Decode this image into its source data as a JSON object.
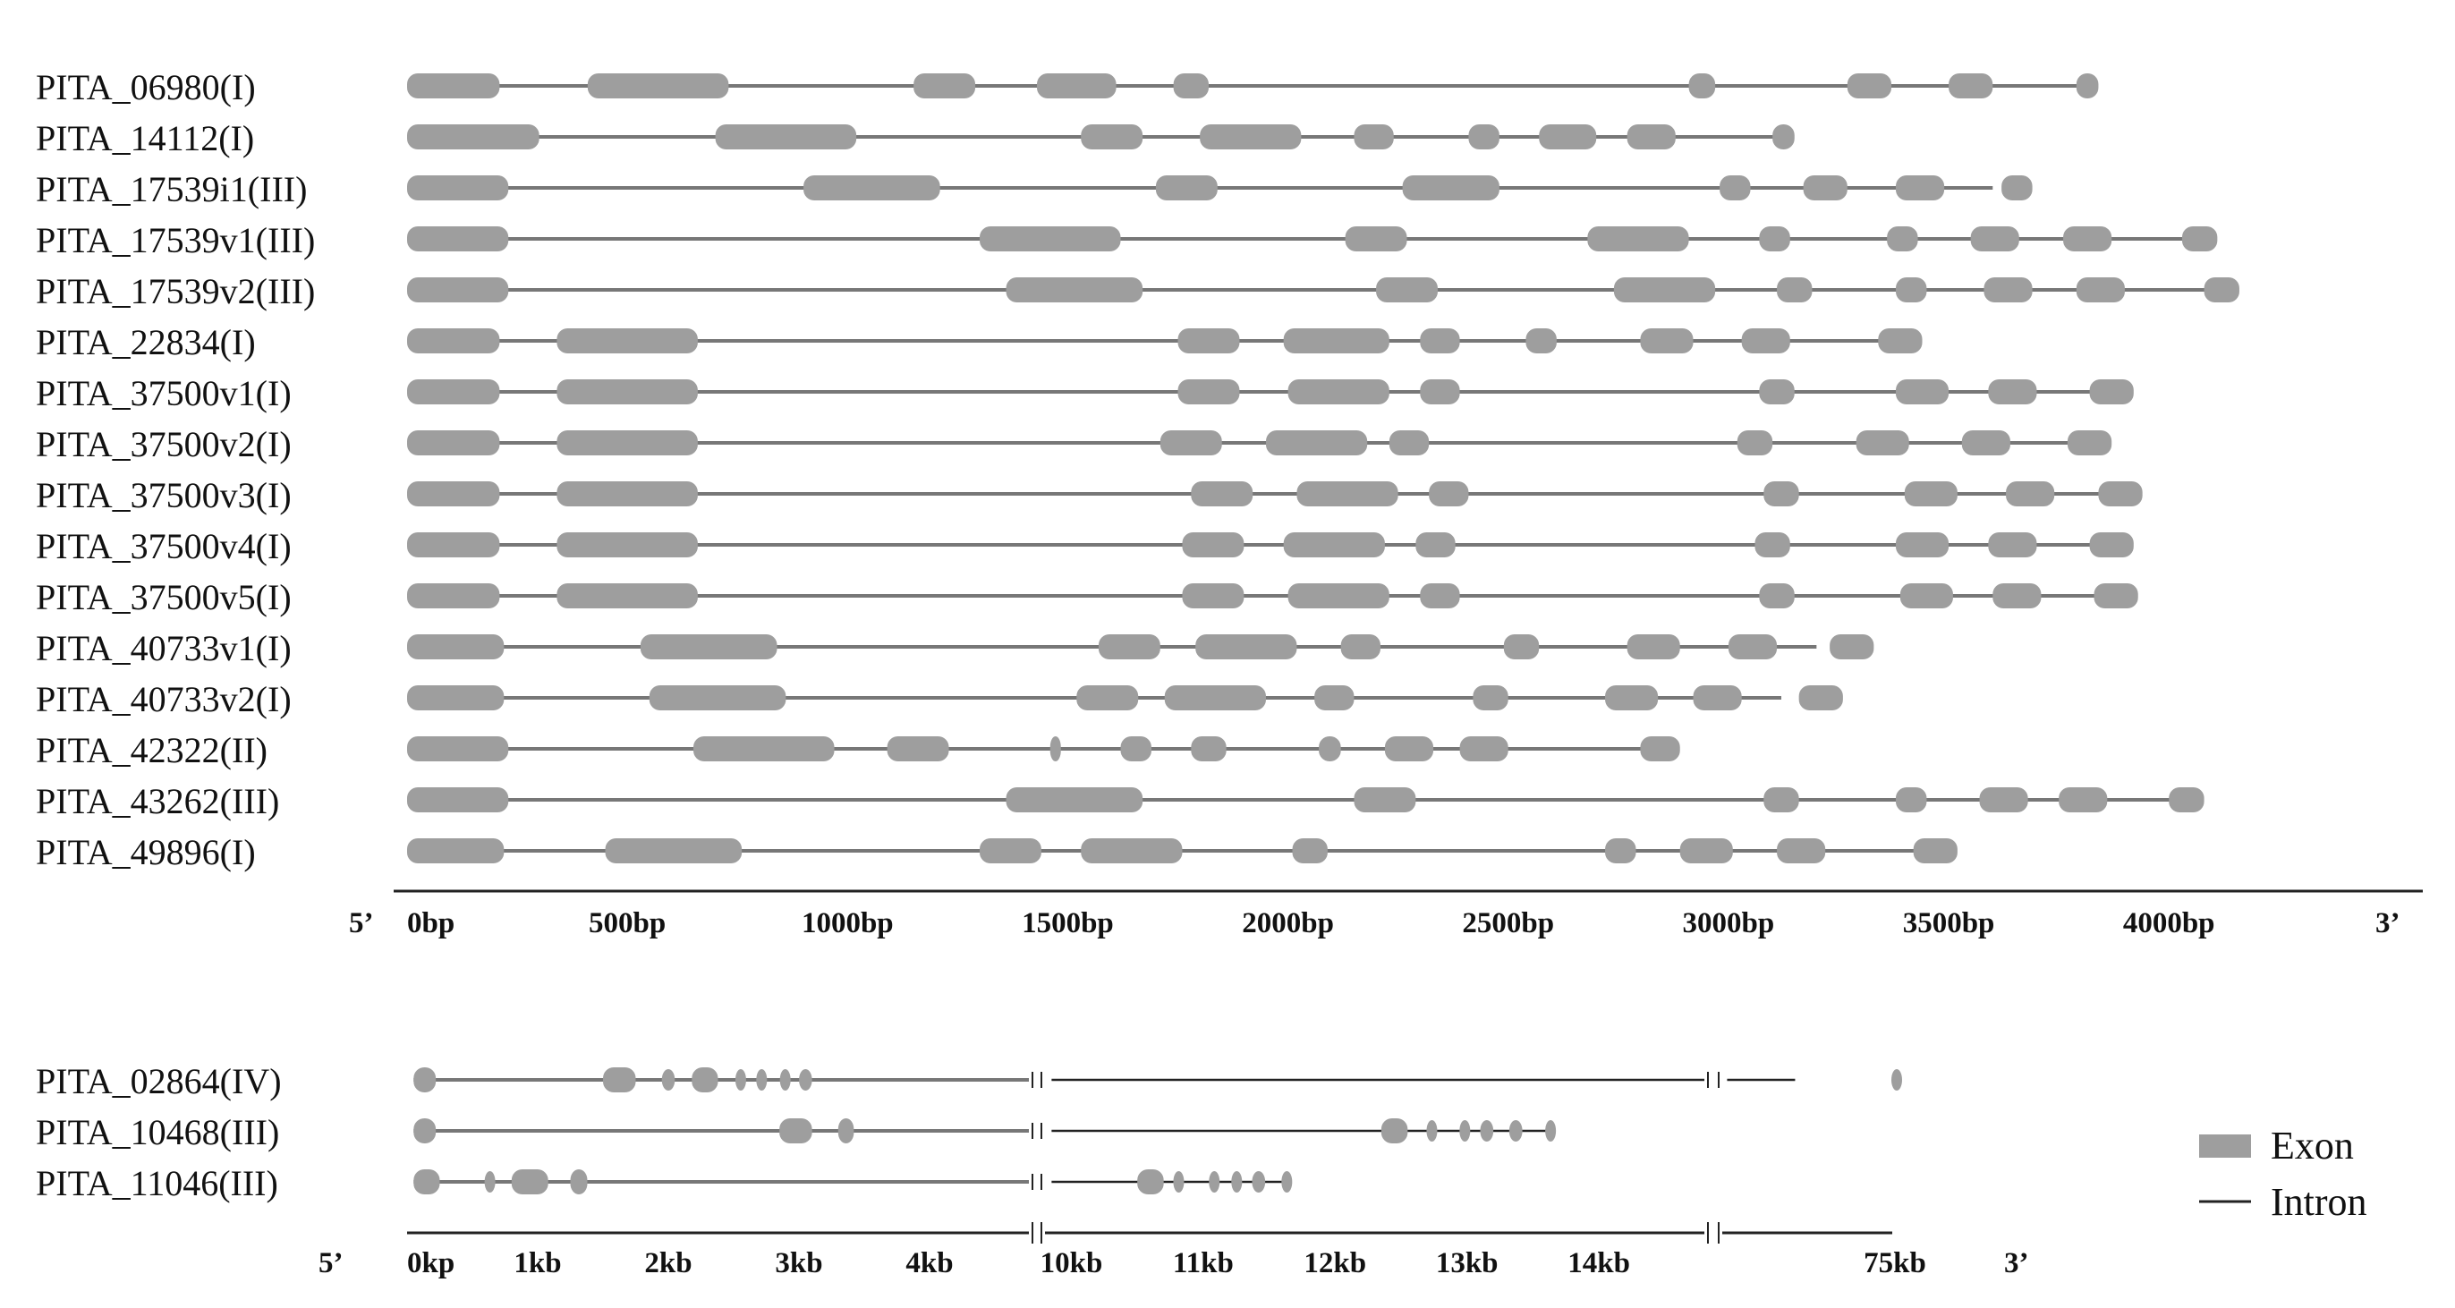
{
  "colors": {
    "exon": "#9e9e9e",
    "intron": "#777777",
    "text": "#111111",
    "axis": "#222222"
  },
  "top_panel": {
    "axis_unit": "bp",
    "axis_range": [
      0,
      4500
    ],
    "five_prime": "5’",
    "three_prime": "3’",
    "ticks": [
      {
        "value": 0,
        "label": "0bp"
      },
      {
        "value": 500,
        "label": "500bp"
      },
      {
        "value": 1000,
        "label": "1000bp"
      },
      {
        "value": 1500,
        "label": "1500bp"
      },
      {
        "value": 2000,
        "label": "2000bp"
      },
      {
        "value": 2500,
        "label": "2500bp"
      },
      {
        "value": 3000,
        "label": "3000bp"
      },
      {
        "value": 3500,
        "label": "3500bp"
      },
      {
        "value": 4000,
        "label": "4000bp"
      }
    ],
    "genes": [
      {
        "name": "PITA_06980(I)",
        "length": 3830,
        "exons": [
          [
            0,
            210
          ],
          [
            410,
            730
          ],
          [
            1150,
            1290
          ],
          [
            1430,
            1610
          ],
          [
            1740,
            1820
          ],
          [
            2910,
            2970
          ],
          [
            3270,
            3370
          ],
          [
            3500,
            3600
          ],
          [
            3790,
            3840
          ]
        ]
      },
      {
        "name": "PITA_14112(I)",
        "length": 3130,
        "exons": [
          [
            0,
            300
          ],
          [
            700,
            1020
          ],
          [
            1530,
            1670
          ],
          [
            1800,
            2030
          ],
          [
            2150,
            2240
          ],
          [
            2410,
            2480
          ],
          [
            2570,
            2700
          ],
          [
            2770,
            2880
          ],
          [
            3100,
            3150
          ]
        ]
      },
      {
        "name": "PITA_17539i1(III)",
        "length": 3600,
        "exons": [
          [
            0,
            230
          ],
          [
            900,
            1210
          ],
          [
            1700,
            1840
          ],
          [
            2260,
            2480
          ],
          [
            2980,
            3050
          ],
          [
            3170,
            3270
          ],
          [
            3380,
            3490
          ],
          [
            3620,
            3690
          ]
        ]
      },
      {
        "name": "PITA_17539v1(III)",
        "length": 4050,
        "exons": [
          [
            0,
            230
          ],
          [
            1300,
            1620
          ],
          [
            2130,
            2270
          ],
          [
            2680,
            2910
          ],
          [
            3070,
            3140
          ],
          [
            3360,
            3430
          ],
          [
            3550,
            3660
          ],
          [
            3760,
            3870
          ],
          [
            4030,
            4110
          ]
        ]
      },
      {
        "name": "PITA_17539v2(III)",
        "length": 4100,
        "exons": [
          [
            0,
            230
          ],
          [
            1360,
            1670
          ],
          [
            2200,
            2340
          ],
          [
            2740,
            2970
          ],
          [
            3110,
            3190
          ],
          [
            3380,
            3450
          ],
          [
            3580,
            3690
          ],
          [
            3790,
            3900
          ],
          [
            4080,
            4160
          ]
        ]
      },
      {
        "name": "PITA_22834(I)",
        "length": 3380,
        "exons": [
          [
            0,
            210
          ],
          [
            340,
            660
          ],
          [
            1750,
            1890
          ],
          [
            1990,
            2230
          ],
          [
            2300,
            2390
          ],
          [
            2540,
            2610
          ],
          [
            2800,
            2920
          ],
          [
            3030,
            3140
          ],
          [
            3340,
            3440
          ]
        ]
      },
      {
        "name": "PITA_37500v1(I)",
        "length": 3850,
        "exons": [
          [
            0,
            210
          ],
          [
            340,
            660
          ],
          [
            1750,
            1890
          ],
          [
            2000,
            2230
          ],
          [
            2300,
            2390
          ],
          [
            3070,
            3150
          ],
          [
            3380,
            3500
          ],
          [
            3590,
            3700
          ],
          [
            3820,
            3920
          ]
        ]
      },
      {
        "name": "PITA_37500v2(I)",
        "length": 3770,
        "exons": [
          [
            0,
            210
          ],
          [
            340,
            660
          ],
          [
            1710,
            1850
          ],
          [
            1950,
            2180
          ],
          [
            2230,
            2320
          ],
          [
            3020,
            3100
          ],
          [
            3290,
            3410
          ],
          [
            3530,
            3640
          ],
          [
            3770,
            3870
          ]
        ]
      },
      {
        "name": "PITA_37500v3(I)",
        "length": 3870,
        "exons": [
          [
            0,
            210
          ],
          [
            340,
            660
          ],
          [
            1780,
            1920
          ],
          [
            2020,
            2250
          ],
          [
            2320,
            2410
          ],
          [
            3080,
            3160
          ],
          [
            3400,
            3520
          ],
          [
            3630,
            3740
          ],
          [
            3840,
            3940
          ]
        ]
      },
      {
        "name": "PITA_37500v4(I)",
        "length": 3840,
        "exons": [
          [
            0,
            210
          ],
          [
            340,
            660
          ],
          [
            1760,
            1900
          ],
          [
            1990,
            2220
          ],
          [
            2290,
            2380
          ],
          [
            3060,
            3140
          ],
          [
            3380,
            3500
          ],
          [
            3590,
            3700
          ],
          [
            3820,
            3920
          ]
        ]
      },
      {
        "name": "PITA_37500v5(I)",
        "length": 3850,
        "exons": [
          [
            0,
            210
          ],
          [
            340,
            660
          ],
          [
            1760,
            1900
          ],
          [
            2000,
            2230
          ],
          [
            2300,
            2390
          ],
          [
            3070,
            3150
          ],
          [
            3390,
            3510
          ],
          [
            3600,
            3710
          ],
          [
            3830,
            3930
          ]
        ]
      },
      {
        "name": "PITA_40733v1(I)",
        "length": 3200,
        "exons": [
          [
            0,
            220
          ],
          [
            530,
            840
          ],
          [
            1570,
            1710
          ],
          [
            1790,
            2020
          ],
          [
            2120,
            2210
          ],
          [
            2490,
            2570
          ],
          [
            2770,
            2890
          ],
          [
            3000,
            3110
          ],
          [
            3230,
            3330
          ]
        ]
      },
      {
        "name": "PITA_40733v2(I)",
        "length": 3120,
        "exons": [
          [
            0,
            220
          ],
          [
            550,
            860
          ],
          [
            1520,
            1660
          ],
          [
            1720,
            1950
          ],
          [
            2060,
            2150
          ],
          [
            2420,
            2500
          ],
          [
            2720,
            2840
          ],
          [
            2920,
            3030
          ],
          [
            3160,
            3260
          ]
        ]
      },
      {
        "name": "PITA_42322(II)",
        "length": 2850,
        "exons": [
          [
            0,
            230
          ],
          [
            650,
            970
          ],
          [
            1090,
            1230
          ],
          [
            1460,
            1480
          ],
          [
            1620,
            1690
          ],
          [
            1780,
            1860
          ],
          [
            2070,
            2120
          ],
          [
            2220,
            2330
          ],
          [
            2390,
            2500
          ],
          [
            2800,
            2890
          ]
        ]
      },
      {
        "name": "PITA_43262(III)",
        "length": 4020,
        "exons": [
          [
            0,
            230
          ],
          [
            1360,
            1670
          ],
          [
            2150,
            2290
          ],
          [
            3080,
            3160
          ],
          [
            3380,
            3450
          ],
          [
            3570,
            3680
          ],
          [
            3750,
            3860
          ],
          [
            4000,
            4080
          ]
        ]
      },
      {
        "name": "PITA_49896(I)",
        "length": 3480,
        "exons": [
          [
            0,
            220
          ],
          [
            450,
            760
          ],
          [
            1300,
            1440
          ],
          [
            1530,
            1760
          ],
          [
            2010,
            2090
          ],
          [
            2720,
            2790
          ],
          [
            2890,
            3010
          ],
          [
            3110,
            3220
          ],
          [
            3420,
            3520
          ]
        ]
      }
    ]
  },
  "bottom_panel": {
    "five_prime": "5’",
    "three_prime": "3’",
    "ticks": [
      "0kp",
      "1kb",
      "2kb",
      "3kb",
      "4kb",
      "10kb",
      "11kb",
      "12kb",
      "13kb",
      "14kb",
      "75kb"
    ],
    "genes": [
      {
        "name": "PITA_02864(IV)",
        "exons": [
          [
            0.05,
            0.22
          ],
          [
            1.5,
            1.75
          ],
          [
            1.95,
            2.05
          ],
          [
            2.18,
            2.38
          ],
          [
            2.52,
            2.57
          ],
          [
            2.68,
            2.73
          ],
          [
            2.86,
            2.93
          ],
          [
            3.0,
            3.1
          ],
          [
            74.0,
            74.6
          ]
        ],
        "end": 74.6
      },
      {
        "name": "PITA_10468(III)",
        "exons": [
          [
            0.05,
            0.22
          ],
          [
            2.85,
            3.1
          ],
          [
            3.3,
            3.42
          ],
          [
            12.35,
            12.55
          ],
          [
            12.7,
            12.76
          ],
          [
            12.95,
            13.0
          ],
          [
            13.1,
            13.2
          ],
          [
            13.32,
            13.42
          ],
          [
            13.6,
            13.66
          ]
        ],
        "end": 13.66
      },
      {
        "name": "PITA_11046(III)",
        "exons": [
          [
            0.05,
            0.25
          ],
          [
            0.6,
            0.65
          ],
          [
            0.8,
            1.08
          ],
          [
            1.25,
            1.38
          ],
          [
            10.5,
            10.7
          ],
          [
            10.78,
            10.84
          ],
          [
            11.05,
            11.11
          ],
          [
            11.22,
            11.28
          ],
          [
            11.37,
            11.47
          ],
          [
            11.6,
            11.66
          ]
        ],
        "end": 11.66
      }
    ]
  },
  "legend": {
    "exon_label": "Exon",
    "intron_label": "Intron"
  }
}
